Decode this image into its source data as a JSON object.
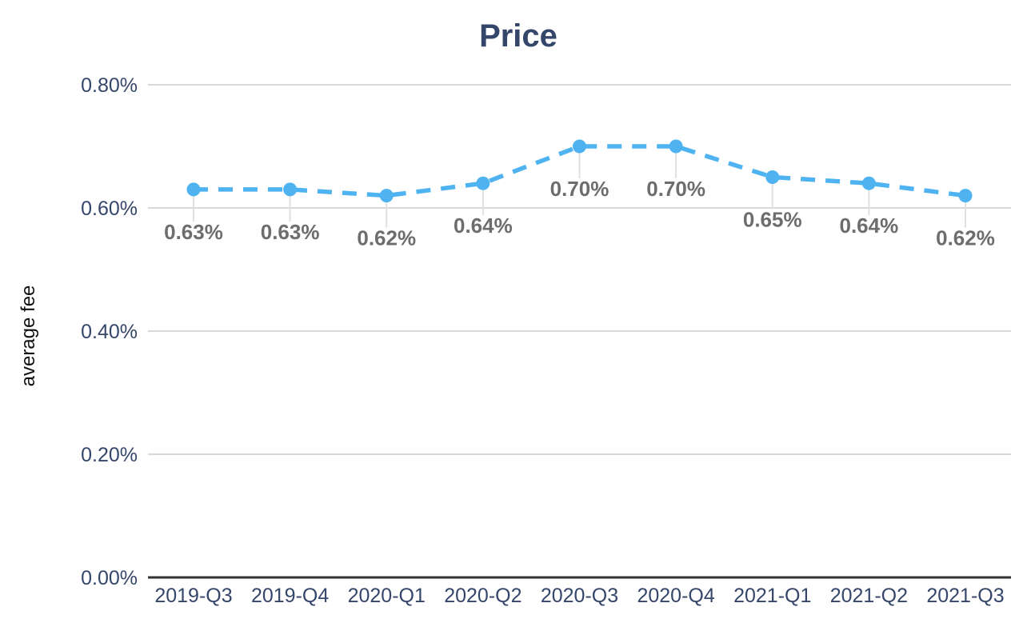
{
  "chart_data": {
    "type": "line",
    "title": "Price",
    "xlabel": "",
    "ylabel": "average fee",
    "categories": [
      "2019-Q3",
      "2019-Q4",
      "2020-Q1",
      "2020-Q2",
      "2020-Q3",
      "2020-Q4",
      "2021-Q1",
      "2021-Q2",
      "2021-Q3"
    ],
    "series": [
      {
        "name": "average fee",
        "values": [
          0.63,
          0.63,
          0.62,
          0.64,
          0.7,
          0.7,
          0.65,
          0.64,
          0.62
        ]
      }
    ],
    "data_labels": [
      "0.63%",
      "0.63%",
      "0.62%",
      "0.64%",
      "0.70%",
      "0.70%",
      "0.65%",
      "0.64%",
      "0.62%"
    ],
    "y_ticks": [
      "0.00%",
      "0.20%",
      "0.40%",
      "0.60%",
      "0.80%"
    ],
    "y_tick_values": [
      0,
      0.2,
      0.4,
      0.6,
      0.8
    ],
    "ylim": [
      0,
      0.8
    ],
    "grid": true,
    "legend": "none",
    "line_style": "dashed",
    "colors": {
      "line": "#4eb3f0",
      "marker": "#4eb3f0",
      "title": "#35466b",
      "axis_text": "#35466b",
      "grid": "#d9d9d9",
      "axis_line": "#333333",
      "data_label": "#6d6d6d",
      "leader": "#e0e0e0",
      "ylabel_text": "#111111"
    }
  }
}
